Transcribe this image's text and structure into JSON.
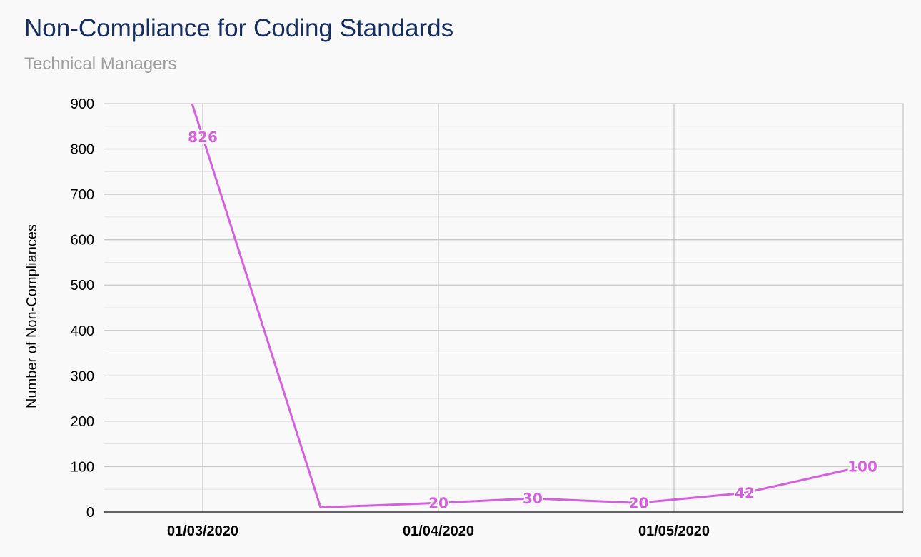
{
  "chart_data": {
    "type": "line",
    "title": "Non-Compliance for Coding Standards",
    "subtitle": "Technical Managers",
    "ylabel": "Number of Non-Compliances",
    "xlabel": "",
    "ylim": [
      0,
      900
    ],
    "yticks": [
      0,
      100,
      200,
      300,
      400,
      500,
      600,
      700,
      800,
      900
    ],
    "xticks": [
      "01/03/2020",
      "01/04/2020",
      "01/05/2020"
    ],
    "grid": true,
    "series": [
      {
        "name": "Non-Compliances",
        "color": "#d65fe0",
        "points": [
          {
            "x": 0.0,
            "y": 826,
            "label": "826"
          },
          {
            "x": 0.5,
            "y": 10,
            "label": ""
          },
          {
            "x": 1.0,
            "y": 20,
            "label": "20"
          },
          {
            "x": 1.4,
            "y": 30,
            "label": "30"
          },
          {
            "x": 1.85,
            "y": 20,
            "label": "20"
          },
          {
            "x": 2.3,
            "y": 42,
            "label": "42"
          },
          {
            "x": 2.8,
            "y": 100,
            "label": "100"
          }
        ]
      }
    ]
  }
}
